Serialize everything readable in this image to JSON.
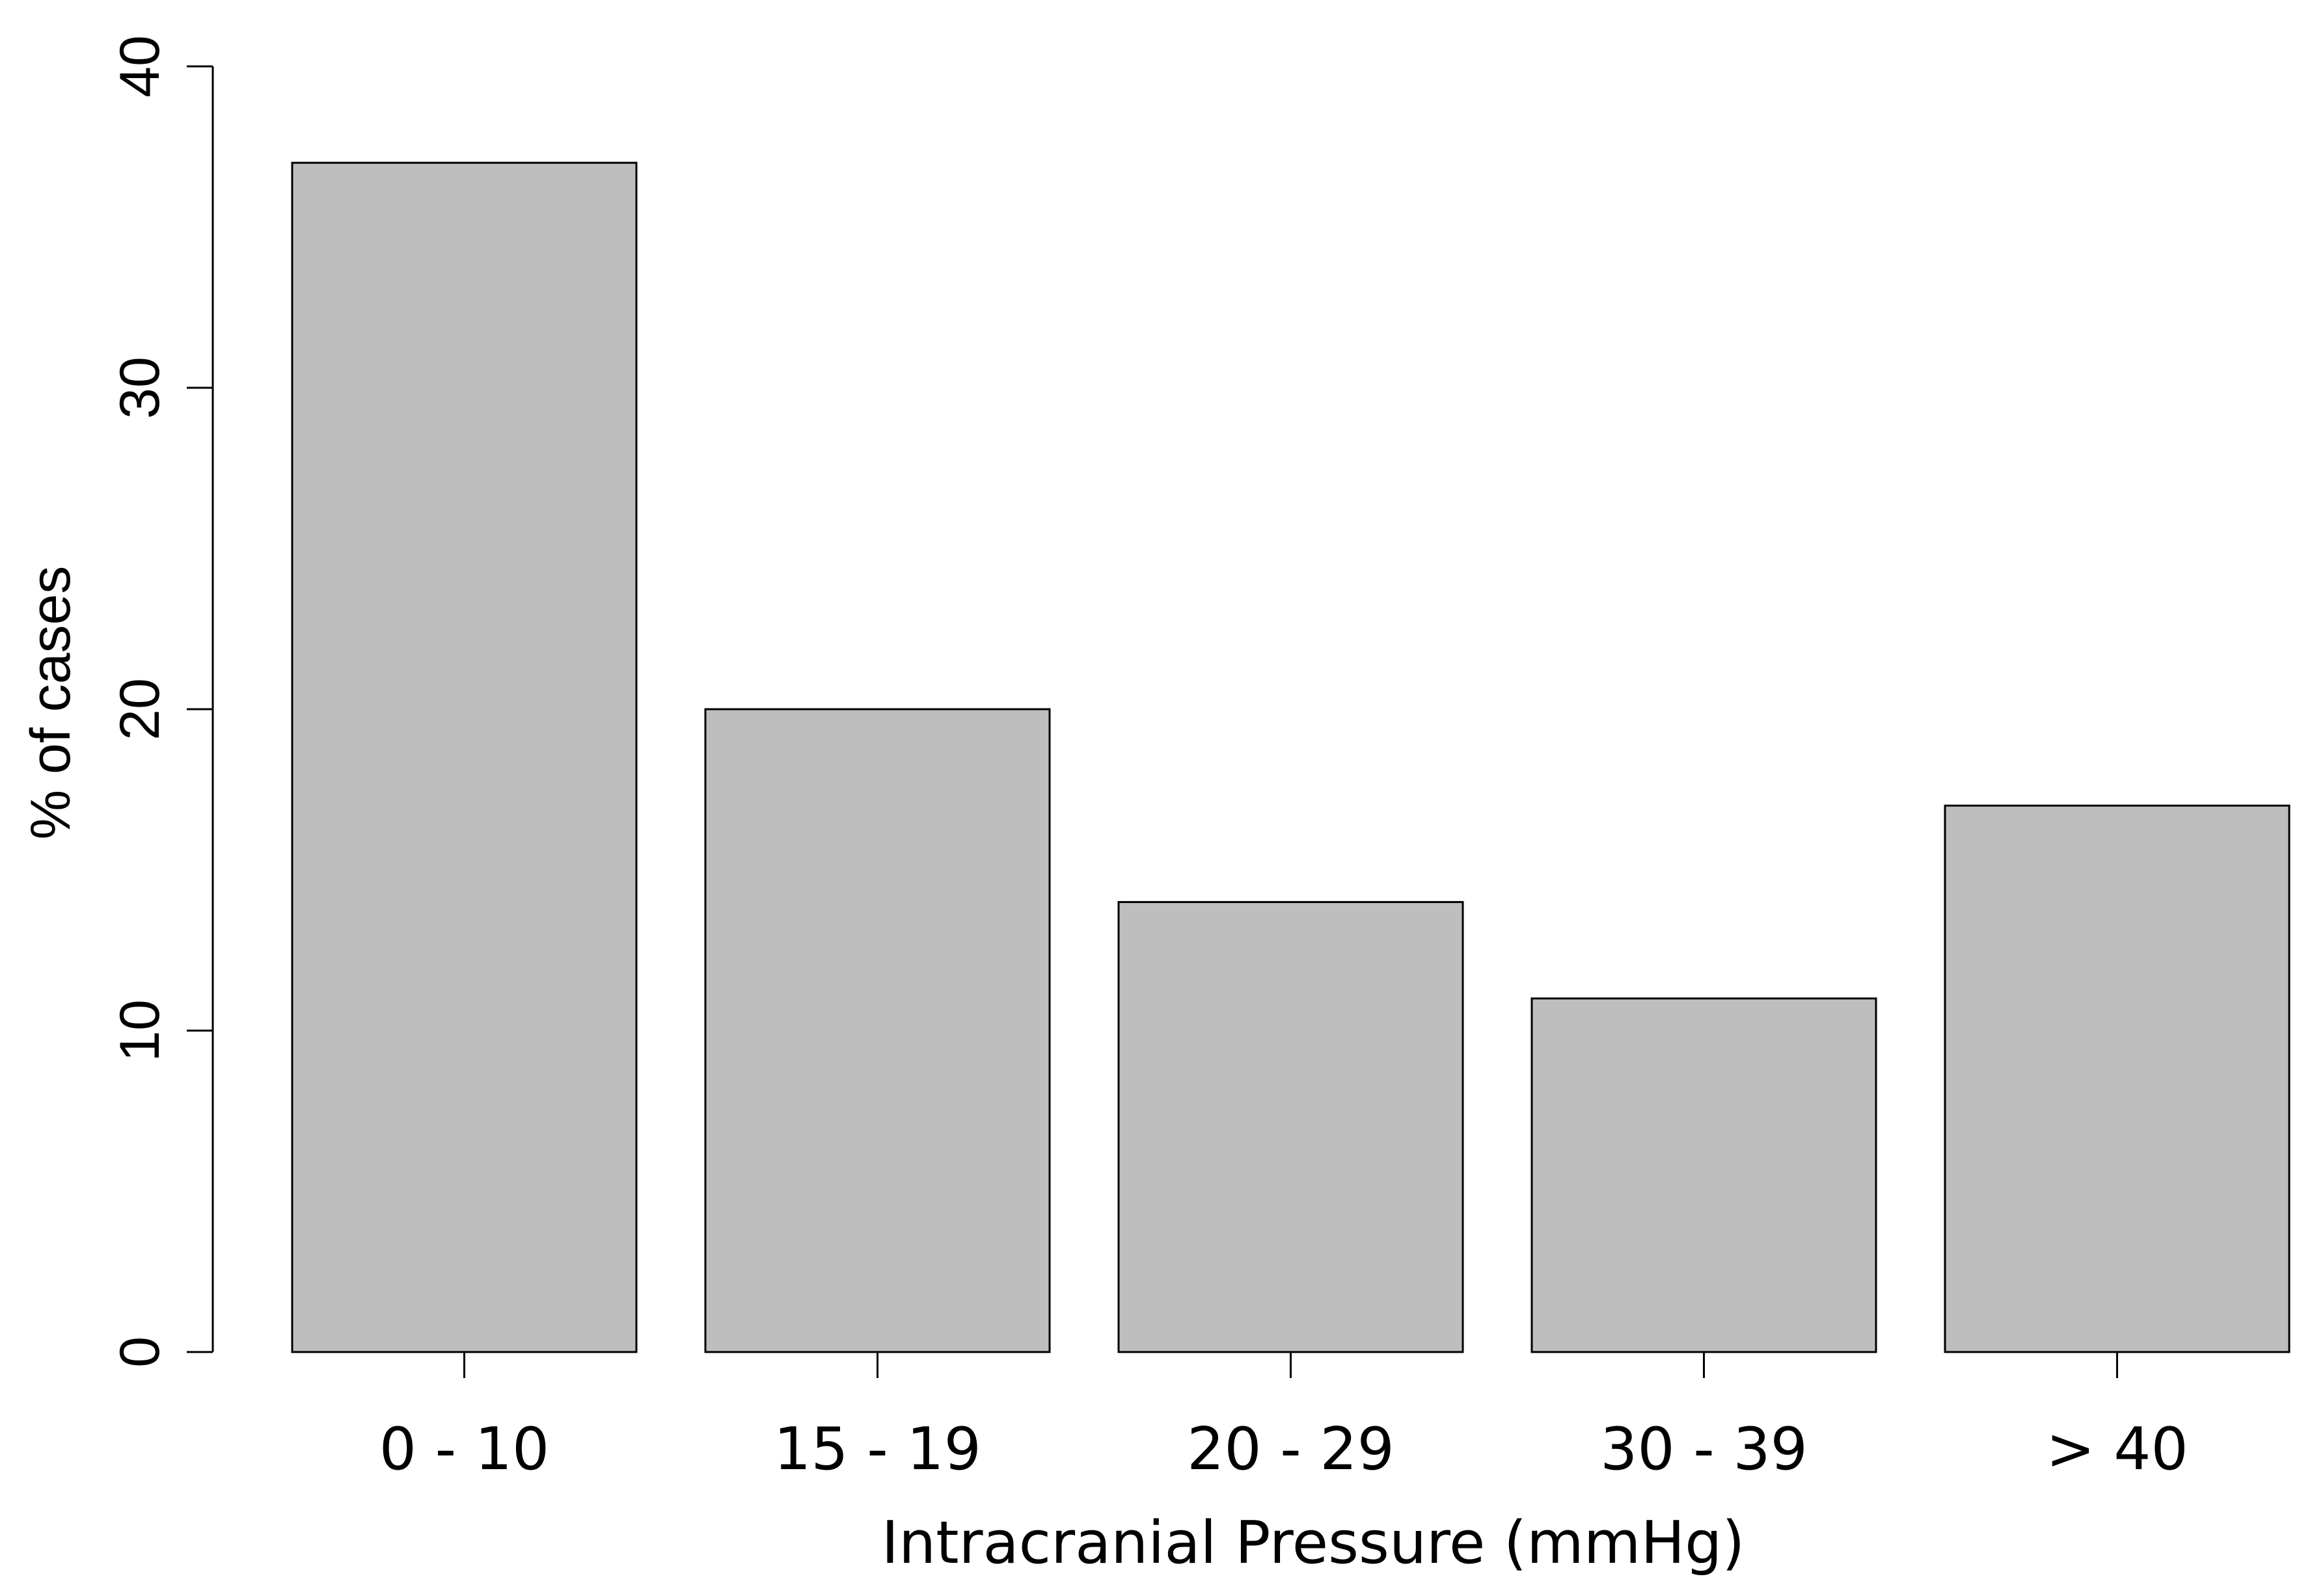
{
  "chart_data": {
    "type": "bar",
    "categories": [
      "0 - 10",
      "15 - 19",
      "20 - 29",
      "30 - 39",
      "> 40"
    ],
    "values": [
      37,
      20,
      14,
      11,
      17
    ],
    "xlabel": "Intracranial Pressure (mmHg)",
    "ylabel": "% of cases",
    "ylim": [
      0,
      40
    ],
    "yticks": [
      "0",
      "10",
      "20",
      "30",
      "40"
    ],
    "bar_color": "#bebebe",
    "bar_edge_color": "#000000",
    "grid": false,
    "legend": "none"
  }
}
